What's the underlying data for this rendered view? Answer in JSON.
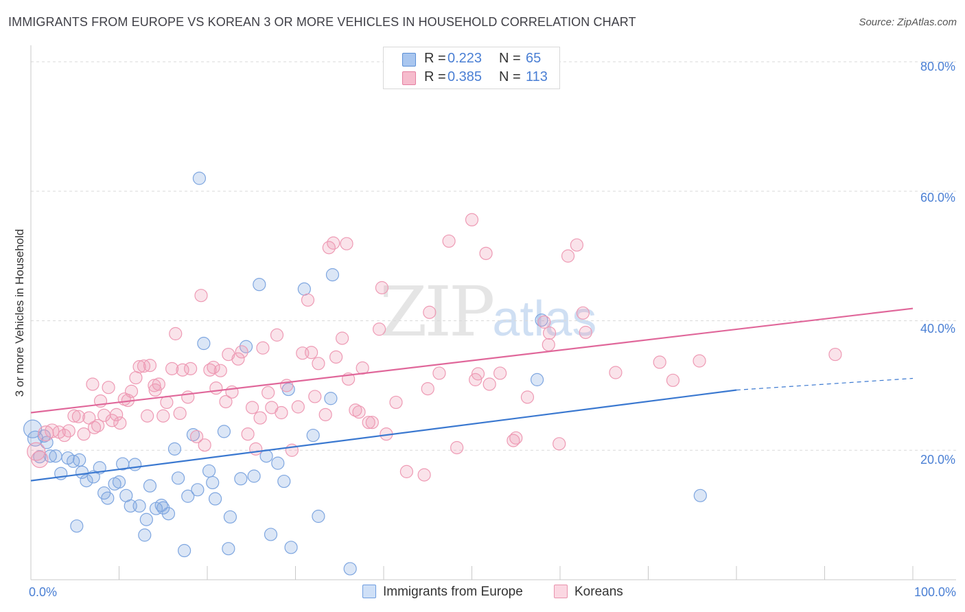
{
  "header": {
    "title": "IMMIGRANTS FROM EUROPE VS KOREAN 3 OR MORE VEHICLES IN HOUSEHOLD CORRELATION CHART",
    "source": "Source: ZipAtlas.com"
  },
  "watermark": {
    "zip": "ZIP",
    "atlas": "atlas"
  },
  "legend": {
    "rows": [
      {
        "r_label": "R =",
        "r_value": "0.223",
        "n_label": "N =",
        "n_value": "65",
        "color": "#a9c6ef",
        "edge": "#5b8fd6"
      },
      {
        "r_label": "R =",
        "r_value": "0.385",
        "n_label": "N =",
        "n_value": "113",
        "color": "#f6bccd",
        "edge": "#e57ea0"
      }
    ],
    "bottom": [
      {
        "label": "Immigrants from Europe",
        "color": "#cfe0f7",
        "edge": "#6e9de0"
      },
      {
        "label": "Koreans",
        "color": "#fbd7e2",
        "edge": "#e892ad"
      }
    ]
  },
  "axes": {
    "y_title": "3 or more Vehicles in Household",
    "y_ticks": [
      "80.0%",
      "60.0%",
      "40.0%",
      "20.0%"
    ],
    "x_ticks": [
      "0.0%",
      "100.0%"
    ]
  },
  "chart_data": {
    "type": "scatter",
    "title": "IMMIGRANTS FROM EUROPE VS KOREAN 3 OR MORE VEHICLES IN HOUSEHOLD CORRELATION CHART",
    "xlabel": "",
    "ylabel": "3 or more Vehicles in Household",
    "xlim": [
      0,
      100
    ],
    "ylim": [
      0,
      80
    ],
    "y_ticks": [
      20,
      40,
      60,
      80
    ],
    "grid": "horizontal dashed",
    "legend": "top-center",
    "series": [
      {
        "name": "Immigrants from Europe",
        "color": "#7ea6e0",
        "line_color": "#3a78d0",
        "trend": {
          "x": [
            0,
            80
          ],
          "y": [
            15.3,
            29.3
          ],
          "dashed_to": [
            100,
            31.1
          ]
        },
        "points": [
          [
            0.2,
            23.3,
            13
          ],
          [
            0.5,
            21.8,
            11
          ],
          [
            1.5,
            22.2,
            9
          ],
          [
            1.8,
            21.2,
            9
          ],
          [
            2.2,
            19.1,
            9
          ],
          [
            2.8,
            19.1,
            9
          ],
          [
            3.4,
            16.4,
            9
          ],
          [
            4.2,
            18.8,
            9
          ],
          [
            4.8,
            18.3,
            9
          ],
          [
            5.5,
            18.5,
            9
          ],
          [
            5.2,
            8.3,
            9
          ],
          [
            5.8,
            16.6,
            9
          ],
          [
            6.3,
            15.3,
            9
          ],
          [
            7.1,
            15.9,
            9
          ],
          [
            7.8,
            17.3,
            9
          ],
          [
            8.3,
            13.4,
            9
          ],
          [
            8.7,
            12.6,
            9
          ],
          [
            9.5,
            14.8,
            9
          ],
          [
            10.0,
            15.1,
            9
          ],
          [
            10.4,
            17.9,
            9
          ],
          [
            10.8,
            13.0,
            9
          ],
          [
            11.3,
            11.4,
            9
          ],
          [
            11.8,
            17.8,
            9
          ],
          [
            12.3,
            11.4,
            9
          ],
          [
            12.9,
            6.9,
            9
          ],
          [
            13.1,
            9.3,
            9
          ],
          [
            13.5,
            14.5,
            9
          ],
          [
            14.2,
            11.0,
            9
          ],
          [
            14.8,
            11.5,
            9
          ],
          [
            15.0,
            11.1,
            9
          ],
          [
            15.6,
            10.2,
            9
          ],
          [
            16.3,
            20.2,
            9
          ],
          [
            16.7,
            15.7,
            9
          ],
          [
            17.4,
            4.5,
            9
          ],
          [
            17.8,
            12.9,
            9
          ],
          [
            18.4,
            22.4,
            9
          ],
          [
            18.9,
            13.9,
            9
          ],
          [
            19.1,
            62.0,
            9
          ],
          [
            19.6,
            36.5,
            9
          ],
          [
            20.2,
            16.8,
            9
          ],
          [
            20.9,
            12.5,
            9
          ],
          [
            20.6,
            15.0,
            9
          ],
          [
            21.9,
            22.9,
            9
          ],
          [
            22.6,
            9.7,
            9
          ],
          [
            22.4,
            4.8,
            9
          ],
          [
            23.8,
            15.6,
            9
          ],
          [
            24.4,
            36.0,
            9
          ],
          [
            25.3,
            16.0,
            9
          ],
          [
            25.9,
            45.6,
            9
          ],
          [
            26.7,
            19.1,
            9
          ],
          [
            27.2,
            7.0,
            9
          ],
          [
            28.0,
            18.0,
            9
          ],
          [
            28.7,
            15.2,
            9
          ],
          [
            29.2,
            29.4,
            9
          ],
          [
            29.5,
            5.0,
            9
          ],
          [
            31.0,
            44.9,
            9
          ],
          [
            32.0,
            22.3,
            9
          ],
          [
            32.6,
            9.8,
            9
          ],
          [
            34.0,
            28.0,
            9
          ],
          [
            34.2,
            47.1,
            9
          ],
          [
            36.2,
            1.7,
            9
          ],
          [
            57.4,
            30.9,
            9
          ],
          [
            57.9,
            40.1,
            9
          ],
          [
            75.9,
            13.0,
            9
          ],
          [
            1.0,
            19.0,
            9
          ]
        ]
      },
      {
        "name": "Koreans",
        "color": "#ee9ab4",
        "line_color": "#e0679a",
        "trend": {
          "x": [
            0,
            100
          ],
          "y": [
            25.8,
            41.9
          ]
        },
        "points": [
          [
            0.6,
            19.8,
            13
          ],
          [
            1.0,
            18.6,
            12
          ],
          [
            1.7,
            22.6,
            11
          ],
          [
            2.4,
            23.0,
            10
          ],
          [
            3.2,
            22.8,
            9
          ],
          [
            3.8,
            22.3,
            9
          ],
          [
            4.3,
            23.0,
            9
          ],
          [
            4.9,
            25.3,
            9
          ],
          [
            5.4,
            25.2,
            9
          ],
          [
            6.0,
            22.5,
            9
          ],
          [
            6.6,
            25.0,
            9
          ],
          [
            7.2,
            23.5,
            9
          ],
          [
            7.6,
            23.8,
            9
          ],
          [
            7.0,
            30.2,
            9
          ],
          [
            7.9,
            27.6,
            9
          ],
          [
            8.3,
            25.4,
            9
          ],
          [
            8.8,
            29.7,
            9
          ],
          [
            9.2,
            24.6,
            9
          ],
          [
            9.7,
            25.5,
            9
          ],
          [
            10.1,
            24.2,
            9
          ],
          [
            10.6,
            27.9,
            9
          ],
          [
            11.0,
            27.7,
            9
          ],
          [
            11.4,
            29.1,
            9
          ],
          [
            11.9,
            31.2,
            9
          ],
          [
            12.3,
            32.9,
            9
          ],
          [
            12.8,
            33.0,
            9
          ],
          [
            13.2,
            25.3,
            9
          ],
          [
            13.5,
            33.1,
            9
          ],
          [
            14.1,
            29.3,
            9
          ],
          [
            14.5,
            30.2,
            9
          ],
          [
            15.0,
            25.3,
            9
          ],
          [
            15.4,
            27.4,
            9
          ],
          [
            16.0,
            32.6,
            9
          ],
          [
            16.4,
            38.0,
            9
          ],
          [
            16.9,
            25.7,
            9
          ],
          [
            17.2,
            32.4,
            9
          ],
          [
            17.8,
            28.2,
            9
          ],
          [
            18.1,
            32.6,
            9
          ],
          [
            18.8,
            22.1,
            9
          ],
          [
            19.3,
            43.9,
            9
          ],
          [
            19.7,
            20.8,
            9
          ],
          [
            20.3,
            32.4,
            9
          ],
          [
            20.7,
            32.8,
            9
          ],
          [
            21.0,
            29.6,
            9
          ],
          [
            21.5,
            32.3,
            9
          ],
          [
            22.1,
            27.5,
            9
          ],
          [
            22.4,
            34.8,
            9
          ],
          [
            22.8,
            29.0,
            9
          ],
          [
            23.5,
            34.1,
            9
          ],
          [
            23.9,
            35.2,
            9
          ],
          [
            24.6,
            22.5,
            9
          ],
          [
            25.1,
            26.6,
            9
          ],
          [
            25.5,
            20.2,
            9
          ],
          [
            26.0,
            25.0,
            9
          ],
          [
            26.3,
            35.8,
            9
          ],
          [
            26.9,
            28.9,
            9
          ],
          [
            27.3,
            26.6,
            9
          ],
          [
            27.9,
            37.8,
            9
          ],
          [
            28.4,
            25.8,
            9
          ],
          [
            29.0,
            30.0,
            9
          ],
          [
            29.6,
            20.0,
            9
          ],
          [
            30.3,
            26.7,
            9
          ],
          [
            30.8,
            35.0,
            9
          ],
          [
            31.4,
            43.2,
            9
          ],
          [
            31.8,
            35.1,
            9
          ],
          [
            32.2,
            28.3,
            9
          ],
          [
            32.6,
            33.4,
            9
          ],
          [
            33.4,
            25.5,
            9
          ],
          [
            33.8,
            51.3,
            9
          ],
          [
            34.3,
            52.0,
            9
          ],
          [
            34.6,
            34.4,
            9
          ],
          [
            35.3,
            37.3,
            9
          ],
          [
            35.8,
            51.9,
            9
          ],
          [
            36.0,
            31.0,
            9
          ],
          [
            36.8,
            26.2,
            9
          ],
          [
            37.2,
            25.9,
            9
          ],
          [
            37.6,
            32.7,
            9
          ],
          [
            38.3,
            24.3,
            9
          ],
          [
            38.7,
            24.3,
            9
          ],
          [
            39.5,
            38.7,
            9
          ],
          [
            39.8,
            45.1,
            9
          ],
          [
            40.3,
            22.5,
            9
          ],
          [
            41.4,
            27.4,
            9
          ],
          [
            42.6,
            16.7,
            9
          ],
          [
            44.6,
            16.2,
            9
          ],
          [
            45.0,
            29.5,
            9
          ],
          [
            45.2,
            41.3,
            9
          ],
          [
            46.3,
            31.9,
            9
          ],
          [
            47.4,
            52.3,
            9
          ],
          [
            48.3,
            20.4,
            9
          ],
          [
            50.0,
            55.6,
            9
          ],
          [
            50.4,
            30.9,
            9
          ],
          [
            50.7,
            31.8,
            9
          ],
          [
            51.6,
            50.4,
            9
          ],
          [
            52.0,
            30.2,
            9
          ],
          [
            53.2,
            31.9,
            9
          ],
          [
            54.7,
            21.5,
            9
          ],
          [
            55.0,
            21.9,
            9
          ],
          [
            56.3,
            28.2,
            9
          ],
          [
            58.2,
            39.8,
            9
          ],
          [
            58.7,
            36.3,
            9
          ],
          [
            58.8,
            38.1,
            9
          ],
          [
            59.9,
            21.0,
            9
          ],
          [
            60.9,
            50.0,
            9
          ],
          [
            61.9,
            51.7,
            9
          ],
          [
            62.6,
            41.2,
            9
          ],
          [
            62.9,
            38.2,
            9
          ],
          [
            66.3,
            32.0,
            9
          ],
          [
            71.3,
            33.6,
            9
          ],
          [
            72.8,
            30.8,
            9
          ],
          [
            75.8,
            33.8,
            9
          ],
          [
            91.2,
            34.8,
            9
          ],
          [
            14.0,
            30.0,
            9
          ]
        ]
      }
    ]
  }
}
